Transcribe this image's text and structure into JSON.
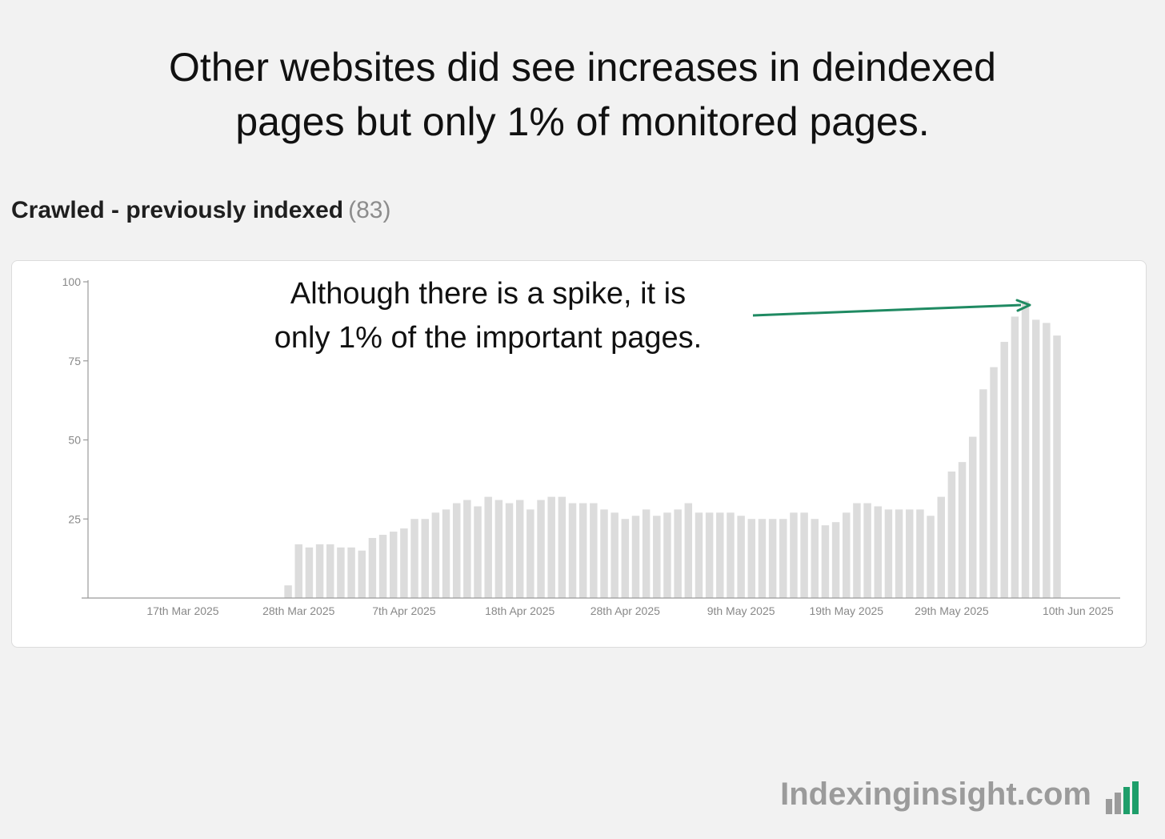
{
  "headline": {
    "line1": "Other websites did see increases in deindexed",
    "line2": "pages but only 1% of monitored pages."
  },
  "section": {
    "title": "Crawled - previously indexed",
    "count": "(83)"
  },
  "annotation": {
    "line1": "Although there is a spike, it is",
    "line2": "only 1% of the important pages."
  },
  "brand": {
    "name": "Indexinginsight.com",
    "logo_colors": [
      "#9b9b9b",
      "#9b9b9b",
      "#1e9e6a",
      "#1e9e6a"
    ]
  },
  "colors": {
    "bar": "#dcdcdc",
    "axis": "#9a9a9a",
    "arrow": "#1f8a62"
  },
  "chart_data": {
    "type": "bar",
    "title": "Crawled - previously indexed",
    "xlabel": "",
    "ylabel": "",
    "ylim": [
      0,
      100
    ],
    "yticks": [
      25,
      50,
      75,
      100
    ],
    "grid": false,
    "x_start": "2025-03-08",
    "x_end": "2025-06-14",
    "xtick_labels": [
      {
        "date": "2025-03-17",
        "label": "17th Mar 2025"
      },
      {
        "date": "2025-03-28",
        "label": "28th Mar 2025"
      },
      {
        "date": "2025-04-07",
        "label": "7th Apr 2025"
      },
      {
        "date": "2025-04-18",
        "label": "18th Apr 2025"
      },
      {
        "date": "2025-04-28",
        "label": "28th Apr 2025"
      },
      {
        "date": "2025-05-09",
        "label": "9th May 2025"
      },
      {
        "date": "2025-05-19",
        "label": "19th May 2025"
      },
      {
        "date": "2025-05-29",
        "label": "29th May 2025"
      },
      {
        "date": "2025-06-10",
        "label": "10th Jun 2025"
      }
    ],
    "series": [
      {
        "values": [
          {
            "x": "2025-03-27",
            "y": 4
          },
          {
            "x": "2025-03-28",
            "y": 17
          },
          {
            "x": "2025-03-29",
            "y": 16
          },
          {
            "x": "2025-03-30",
            "y": 17
          },
          {
            "x": "2025-03-31",
            "y": 17
          },
          {
            "x": "2025-04-01",
            "y": 16
          },
          {
            "x": "2025-04-02",
            "y": 16
          },
          {
            "x": "2025-04-03",
            "y": 15
          },
          {
            "x": "2025-04-04",
            "y": 19
          },
          {
            "x": "2025-04-05",
            "y": 20
          },
          {
            "x": "2025-04-06",
            "y": 21
          },
          {
            "x": "2025-04-07",
            "y": 22
          },
          {
            "x": "2025-04-08",
            "y": 25
          },
          {
            "x": "2025-04-09",
            "y": 25
          },
          {
            "x": "2025-04-10",
            "y": 27
          },
          {
            "x": "2025-04-11",
            "y": 28
          },
          {
            "x": "2025-04-12",
            "y": 30
          },
          {
            "x": "2025-04-13",
            "y": 31
          },
          {
            "x": "2025-04-14",
            "y": 29
          },
          {
            "x": "2025-04-15",
            "y": 32
          },
          {
            "x": "2025-04-16",
            "y": 31
          },
          {
            "x": "2025-04-17",
            "y": 30
          },
          {
            "x": "2025-04-18",
            "y": 31
          },
          {
            "x": "2025-04-19",
            "y": 28
          },
          {
            "x": "2025-04-20",
            "y": 31
          },
          {
            "x": "2025-04-21",
            "y": 32
          },
          {
            "x": "2025-04-22",
            "y": 32
          },
          {
            "x": "2025-04-23",
            "y": 30
          },
          {
            "x": "2025-04-24",
            "y": 30
          },
          {
            "x": "2025-04-25",
            "y": 30
          },
          {
            "x": "2025-04-26",
            "y": 28
          },
          {
            "x": "2025-04-27",
            "y": 27
          },
          {
            "x": "2025-04-28",
            "y": 25
          },
          {
            "x": "2025-04-29",
            "y": 26
          },
          {
            "x": "2025-04-30",
            "y": 28
          },
          {
            "x": "2025-05-01",
            "y": 26
          },
          {
            "x": "2025-05-02",
            "y": 27
          },
          {
            "x": "2025-05-03",
            "y": 28
          },
          {
            "x": "2025-05-04",
            "y": 30
          },
          {
            "x": "2025-05-05",
            "y": 27
          },
          {
            "x": "2025-05-06",
            "y": 27
          },
          {
            "x": "2025-05-07",
            "y": 27
          },
          {
            "x": "2025-05-08",
            "y": 27
          },
          {
            "x": "2025-05-09",
            "y": 26
          },
          {
            "x": "2025-05-10",
            "y": 25
          },
          {
            "x": "2025-05-11",
            "y": 25
          },
          {
            "x": "2025-05-12",
            "y": 25
          },
          {
            "x": "2025-05-13",
            "y": 25
          },
          {
            "x": "2025-05-14",
            "y": 27
          },
          {
            "x": "2025-05-15",
            "y": 27
          },
          {
            "x": "2025-05-16",
            "y": 25
          },
          {
            "x": "2025-05-17",
            "y": 23
          },
          {
            "x": "2025-05-18",
            "y": 24
          },
          {
            "x": "2025-05-19",
            "y": 27
          },
          {
            "x": "2025-05-20",
            "y": 30
          },
          {
            "x": "2025-05-21",
            "y": 30
          },
          {
            "x": "2025-05-22",
            "y": 29
          },
          {
            "x": "2025-05-23",
            "y": 28
          },
          {
            "x": "2025-05-24",
            "y": 28
          },
          {
            "x": "2025-05-25",
            "y": 28
          },
          {
            "x": "2025-05-26",
            "y": 28
          },
          {
            "x": "2025-05-27",
            "y": 26
          },
          {
            "x": "2025-05-28",
            "y": 32
          },
          {
            "x": "2025-05-29",
            "y": 40
          },
          {
            "x": "2025-05-30",
            "y": 43
          },
          {
            "x": "2025-05-31",
            "y": 51
          },
          {
            "x": "2025-06-01",
            "y": 66
          },
          {
            "x": "2025-06-02",
            "y": 73
          },
          {
            "x": "2025-06-03",
            "y": 81
          },
          {
            "x": "2025-06-04",
            "y": 89
          },
          {
            "x": "2025-06-05",
            "y": 94
          },
          {
            "x": "2025-06-06",
            "y": 88
          },
          {
            "x": "2025-06-07",
            "y": 87
          },
          {
            "x": "2025-06-08",
            "y": 83
          }
        ]
      }
    ]
  }
}
